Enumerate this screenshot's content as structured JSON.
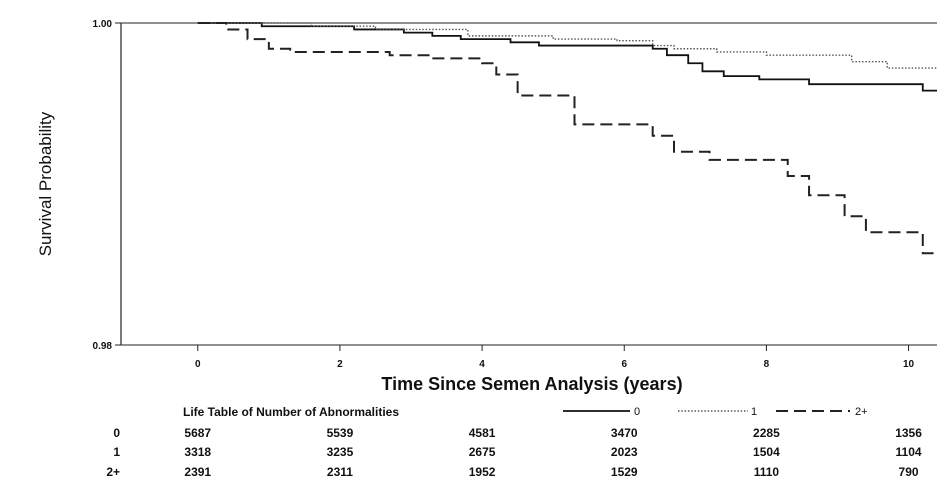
{
  "chart_data": {
    "type": "line",
    "ylabel": "Survival Probability",
    "xlabel": "Time Since Semen Analysis (years)",
    "xlim": [
      -1.08,
      10.4
    ],
    "ylim": [
      0.98,
      1.0
    ],
    "xticks": [
      0,
      2,
      4,
      6,
      8,
      10
    ],
    "xtick_labels": [
      "0",
      "2",
      "4",
      "6",
      "8",
      "10"
    ],
    "yticks": [
      0.98,
      1.0
    ],
    "ytick_labels": [
      "0.98",
      "1.00"
    ],
    "grid": false,
    "series": [
      {
        "name": "0",
        "style": "solid",
        "points": [
          [
            0,
            1.0
          ],
          [
            0.9,
            0.9998
          ],
          [
            2.2,
            0.9996
          ],
          [
            2.9,
            0.9994
          ],
          [
            3.3,
            0.9992
          ],
          [
            3.7,
            0.999
          ],
          [
            4.4,
            0.9988
          ],
          [
            4.8,
            0.9986
          ],
          [
            5.8,
            0.9986
          ],
          [
            6.4,
            0.9984
          ],
          [
            6.6,
            0.998
          ],
          [
            6.9,
            0.9975
          ],
          [
            7.1,
            0.997
          ],
          [
            7.4,
            0.9967
          ],
          [
            7.9,
            0.9965
          ],
          [
            8.6,
            0.9962
          ],
          [
            10.2,
            0.9958
          ],
          [
            10.4,
            0.9958
          ]
        ]
      },
      {
        "name": "1",
        "style": "dotted",
        "points": [
          [
            0,
            1.0
          ],
          [
            1.6,
            0.9998
          ],
          [
            2.5,
            0.9996
          ],
          [
            3.8,
            0.9992
          ],
          [
            5.0,
            0.999
          ],
          [
            5.9,
            0.9989
          ],
          [
            6.4,
            0.9986
          ],
          [
            6.7,
            0.9984
          ],
          [
            7.3,
            0.9982
          ],
          [
            8.0,
            0.998
          ],
          [
            9.2,
            0.9976
          ],
          [
            9.7,
            0.9972
          ],
          [
            10.4,
            0.9972
          ]
        ]
      },
      {
        "name": "2+",
        "style": "dashed",
        "points": [
          [
            0,
            1.0
          ],
          [
            0.4,
            0.9996
          ],
          [
            0.7,
            0.999
          ],
          [
            1.0,
            0.9984
          ],
          [
            1.3,
            0.9982
          ],
          [
            2.7,
            0.998
          ],
          [
            3.3,
            0.9978
          ],
          [
            4.0,
            0.9975
          ],
          [
            4.2,
            0.9968
          ],
          [
            4.5,
            0.9955
          ],
          [
            5.3,
            0.9937
          ],
          [
            5.7,
            0.9937
          ],
          [
            6.4,
            0.993
          ],
          [
            6.7,
            0.992
          ],
          [
            7.2,
            0.9915
          ],
          [
            8.3,
            0.9905
          ],
          [
            8.6,
            0.9893
          ],
          [
            9.1,
            0.988
          ],
          [
            9.4,
            0.987
          ],
          [
            10.2,
            0.9857
          ],
          [
            10.4,
            0.9857
          ]
        ]
      }
    ],
    "legend": {
      "title": "Life Table of Number of Abnormalities",
      "entries": [
        "0",
        "1",
        "2+"
      ],
      "placement": "bottom"
    },
    "risk_table": {
      "times": [
        0,
        2,
        4,
        6,
        8,
        10
      ],
      "rows": [
        {
          "label": "0",
          "values": [
            "5687",
            "5539",
            "4581",
            "3470",
            "2285",
            "1356"
          ]
        },
        {
          "label": "1",
          "values": [
            "3318",
            "3235",
            "2675",
            "2023",
            "1504",
            "1104"
          ]
        },
        {
          "label": "2+",
          "values": [
            "2391",
            "2311",
            "1952",
            "1529",
            "1110",
            "790"
          ]
        }
      ]
    }
  }
}
